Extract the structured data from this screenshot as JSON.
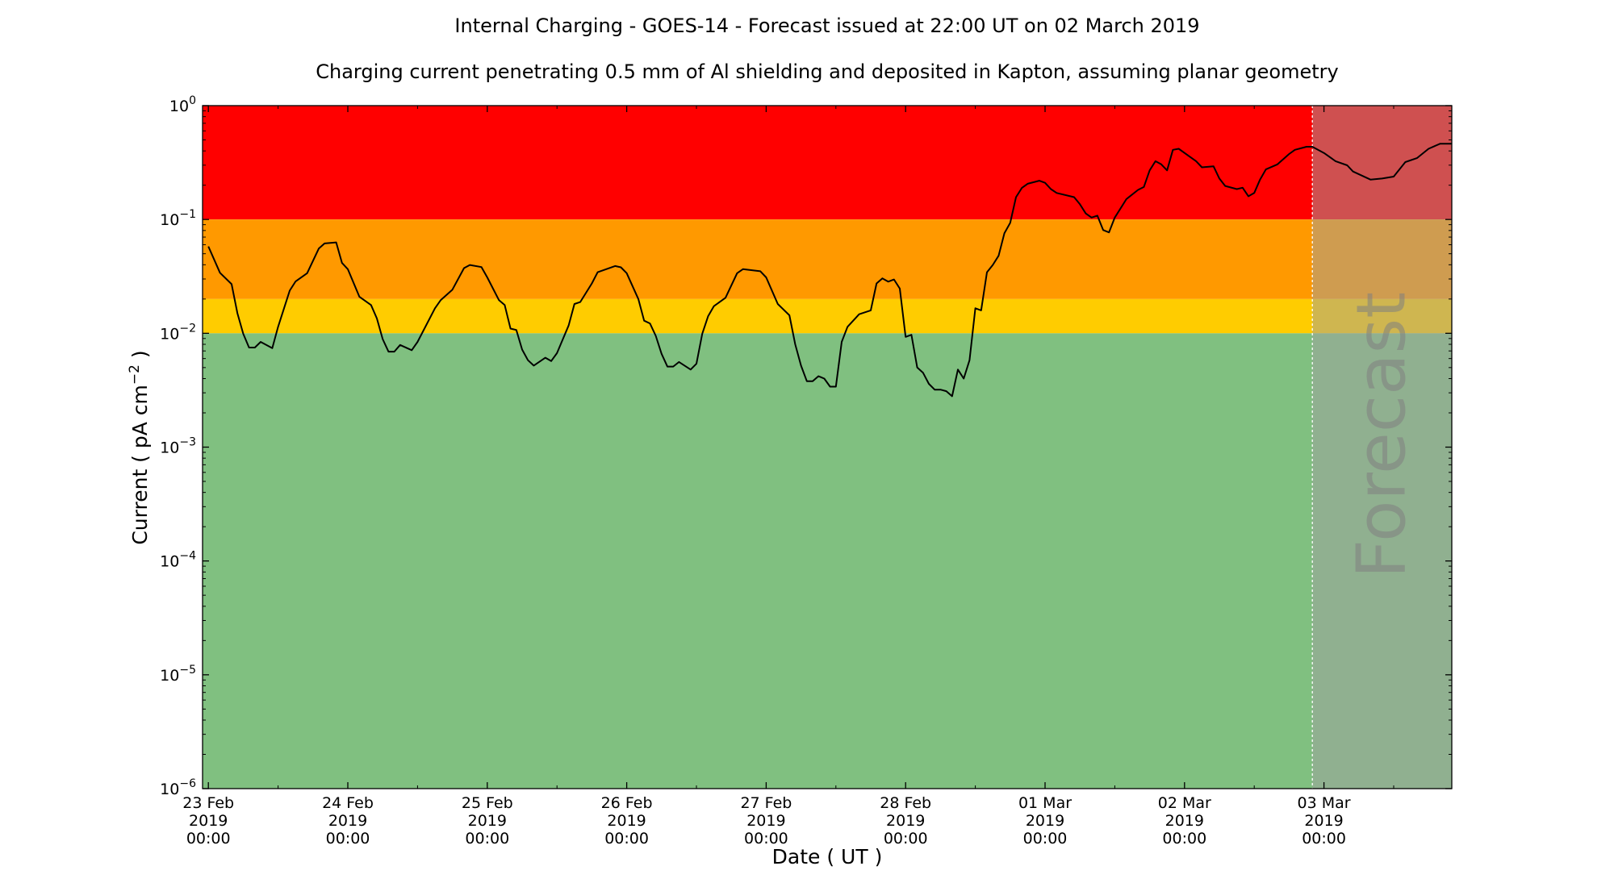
{
  "chart_data": {
    "type": "line",
    "title": "Internal Charging - GOES-14 - Forecast issued at 22:00 UT on 02 March 2019",
    "subtitle": "Charging current penetrating 0.5 mm of Al shielding and deposited in Kapton, assuming planar geometry",
    "xlabel": "Date ( UT )",
    "ylabel": {
      "prefix": "Current ( pA cm",
      "exp": "−2",
      "suffix": " )"
    },
    "yscale": "log",
    "ylim": [
      1e-06,
      1
    ],
    "xlim": [
      "2019-02-22T23:00",
      "2019-03-03T22:00"
    ],
    "grid": false,
    "y_ticks": [
      {
        "value": 1,
        "base": "10",
        "exp": "0"
      },
      {
        "value": 0.1,
        "base": "10",
        "exp": "−1"
      },
      {
        "value": 0.01,
        "base": "10",
        "exp": "−2"
      },
      {
        "value": 0.001,
        "base": "10",
        "exp": "−3"
      },
      {
        "value": 0.0001,
        "base": "10",
        "exp": "−4"
      },
      {
        "value": 1e-05,
        "base": "10",
        "exp": "−5"
      },
      {
        "value": 1e-06,
        "base": "10",
        "exp": "−6"
      }
    ],
    "x_ticks": [
      {
        "value": "2019-02-23T00:00",
        "lines": [
          "23 Feb",
          "2019",
          "00:00"
        ]
      },
      {
        "value": "2019-02-24T00:00",
        "lines": [
          "24 Feb",
          "2019",
          "00:00"
        ]
      },
      {
        "value": "2019-02-25T00:00",
        "lines": [
          "25 Feb",
          "2019",
          "00:00"
        ]
      },
      {
        "value": "2019-02-26T00:00",
        "lines": [
          "26 Feb",
          "2019",
          "00:00"
        ]
      },
      {
        "value": "2019-02-27T00:00",
        "lines": [
          "27 Feb",
          "2019",
          "00:00"
        ]
      },
      {
        "value": "2019-02-28T00:00",
        "lines": [
          "28 Feb",
          "2019",
          "00:00"
        ]
      },
      {
        "value": "2019-03-01T00:00",
        "lines": [
          "01 Mar",
          "2019",
          "00:00"
        ]
      },
      {
        "value": "2019-03-02T00:00",
        "lines": [
          "02 Mar",
          "2019",
          "00:00"
        ]
      },
      {
        "value": "2019-03-03T00:00",
        "lines": [
          "03 Mar",
          "2019",
          "00:00"
        ]
      }
    ],
    "bands": [
      {
        "from": 0.1,
        "to": 1,
        "color": "#ff0000"
      },
      {
        "from": 0.02,
        "to": 0.1,
        "color": "#ff9900"
      },
      {
        "from": 0.01,
        "to": 0.02,
        "color": "#ffcc00"
      },
      {
        "from": 1e-06,
        "to": 0.01,
        "color": "#80c080"
      }
    ],
    "forecast": {
      "start": "2019-03-02T22:00",
      "label": "Forecast",
      "overlay_color": "#a0a0a0"
    },
    "line_color": "#000000",
    "series": [
      {
        "points": [
          [
            "2019-02-23T00:00",
            0.058
          ],
          [
            "2019-02-23T02:00",
            0.034
          ],
          [
            "2019-02-23T04:00",
            0.027
          ],
          [
            "2019-02-23T05:00",
            0.015
          ],
          [
            "2019-02-23T06:00",
            0.0099
          ],
          [
            "2019-02-23T07:00",
            0.0075
          ],
          [
            "2019-02-23T08:00",
            0.0075
          ],
          [
            "2019-02-23T09:00",
            0.0084
          ],
          [
            "2019-02-23T11:00",
            0.0074
          ],
          [
            "2019-02-23T12:00",
            0.0114
          ],
          [
            "2019-02-23T14:00",
            0.0237
          ],
          [
            "2019-02-23T15:00",
            0.0285
          ],
          [
            "2019-02-23T17:00",
            0.0337
          ],
          [
            "2019-02-23T19:00",
            0.0555
          ],
          [
            "2019-02-23T20:00",
            0.0616
          ],
          [
            "2019-02-23T22:00",
            0.0629
          ],
          [
            "2019-02-23T23:00",
            0.0415
          ],
          [
            "2019-02-24T00:00",
            0.0366
          ],
          [
            "2019-02-24T02:00",
            0.0209
          ],
          [
            "2019-02-24T04:00",
            0.0177
          ],
          [
            "2019-02-24T05:00",
            0.0135
          ],
          [
            "2019-02-24T06:00",
            0.0089
          ],
          [
            "2019-02-24T07:00",
            0.0069
          ],
          [
            "2019-02-24T08:00",
            0.0069
          ],
          [
            "2019-02-24T09:00",
            0.0079
          ],
          [
            "2019-02-24T11:00",
            0.0071
          ],
          [
            "2019-02-24T12:00",
            0.0084
          ],
          [
            "2019-02-24T15:00",
            0.0166
          ],
          [
            "2019-02-24T16:00",
            0.0196
          ],
          [
            "2019-02-24T18:00",
            0.0242
          ],
          [
            "2019-02-24T20:00",
            0.0374
          ],
          [
            "2019-02-24T21:00",
            0.0398
          ],
          [
            "2019-02-24T23:00",
            0.0382
          ],
          [
            "2019-02-25T00:00",
            0.031
          ],
          [
            "2019-02-25T02:00",
            0.0196
          ],
          [
            "2019-02-25T03:00",
            0.0177
          ],
          [
            "2019-02-25T04:00",
            0.011
          ],
          [
            "2019-02-25T05:00",
            0.0107
          ],
          [
            "2019-02-25T06:00",
            0.0072
          ],
          [
            "2019-02-25T07:00",
            0.0058
          ],
          [
            "2019-02-25T08:00",
            0.0052
          ],
          [
            "2019-02-25T10:00",
            0.0061
          ],
          [
            "2019-02-25T11:00",
            0.0057
          ],
          [
            "2019-02-25T12:00",
            0.0067
          ],
          [
            "2019-02-25T14:00",
            0.0117
          ],
          [
            "2019-02-25T15:00",
            0.0181
          ],
          [
            "2019-02-25T16:00",
            0.0188
          ],
          [
            "2019-02-25T18:00",
            0.0274
          ],
          [
            "2019-02-25T19:00",
            0.0344
          ],
          [
            "2019-02-25T22:00",
            0.039
          ],
          [
            "2019-02-25T23:00",
            0.038
          ],
          [
            "2019-02-26T00:00",
            0.0337
          ],
          [
            "2019-02-26T02:00",
            0.02
          ],
          [
            "2019-02-26T03:00",
            0.0129
          ],
          [
            "2019-02-26T04:00",
            0.0122
          ],
          [
            "2019-02-26T05:00",
            0.0095
          ],
          [
            "2019-02-26T06:00",
            0.0066
          ],
          [
            "2019-02-26T07:00",
            0.0051
          ],
          [
            "2019-02-26T08:00",
            0.0051
          ],
          [
            "2019-02-26T09:00",
            0.0056
          ],
          [
            "2019-02-26T11:00",
            0.0048
          ],
          [
            "2019-02-26T12:00",
            0.0054
          ],
          [
            "2019-02-26T13:00",
            0.0099
          ],
          [
            "2019-02-26T14:00",
            0.0141
          ],
          [
            "2019-02-26T15:00",
            0.0173
          ],
          [
            "2019-02-26T17:00",
            0.0205
          ],
          [
            "2019-02-26T19:00",
            0.0337
          ],
          [
            "2019-02-26T20:00",
            0.0366
          ],
          [
            "2019-02-26T23:00",
            0.0351
          ],
          [
            "2019-02-27T00:00",
            0.031
          ],
          [
            "2019-02-27T02:00",
            0.0181
          ],
          [
            "2019-02-27T04:00",
            0.0144
          ],
          [
            "2019-02-27T05:00",
            0.008
          ],
          [
            "2019-02-27T06:00",
            0.0052
          ],
          [
            "2019-02-27T07:00",
            0.0038
          ],
          [
            "2019-02-27T08:00",
            0.0038
          ],
          [
            "2019-02-27T09:00",
            0.0042
          ],
          [
            "2019-02-27T10:00",
            0.004
          ],
          [
            "2019-02-27T11:00",
            0.0034
          ],
          [
            "2019-02-27T12:00",
            0.0034
          ],
          [
            "2019-02-27T13:00",
            0.0084
          ],
          [
            "2019-02-27T14:00",
            0.0114
          ],
          [
            "2019-02-27T16:00",
            0.0147
          ],
          [
            "2019-02-27T18:00",
            0.0159
          ],
          [
            "2019-02-27T19:00",
            0.0274
          ],
          [
            "2019-02-27T20:00",
            0.0304
          ],
          [
            "2019-02-27T21:00",
            0.0284
          ],
          [
            "2019-02-27T22:00",
            0.0297
          ],
          [
            "2019-02-27T23:00",
            0.0247
          ],
          [
            "2019-02-28T00:00",
            0.0093
          ],
          [
            "2019-02-28T01:00",
            0.0097
          ],
          [
            "2019-02-28T02:00",
            0.005
          ],
          [
            "2019-02-28T03:00",
            0.0045
          ],
          [
            "2019-02-28T04:00",
            0.0036
          ],
          [
            "2019-02-28T05:00",
            0.0032
          ],
          [
            "2019-02-28T06:00",
            0.0032
          ],
          [
            "2019-02-28T07:00",
            0.0031
          ],
          [
            "2019-02-28T08:00",
            0.0028
          ],
          [
            "2019-02-28T09:00",
            0.0048
          ],
          [
            "2019-02-28T10:00",
            0.004
          ],
          [
            "2019-02-28T11:00",
            0.0058
          ],
          [
            "2019-02-28T12:00",
            0.0166
          ],
          [
            "2019-02-28T13:00",
            0.0159
          ],
          [
            "2019-02-28T14:00",
            0.0344
          ],
          [
            "2019-02-28T15:00",
            0.0398
          ],
          [
            "2019-02-28T16:00",
            0.048
          ],
          [
            "2019-02-28T17:00",
            0.0758
          ],
          [
            "2019-02-28T18:00",
            0.0933
          ],
          [
            "2019-02-28T19:00",
            0.157
          ],
          [
            "2019-02-28T20:00",
            0.189
          ],
          [
            "2019-02-28T21:00",
            0.206
          ],
          [
            "2019-02-28T23:00",
            0.219
          ],
          [
            "2019-03-01T00:00",
            0.21
          ],
          [
            "2019-03-01T01:00",
            0.185
          ],
          [
            "2019-03-01T02:00",
            0.171
          ],
          [
            "2019-03-01T05:00",
            0.157
          ],
          [
            "2019-03-01T06:00",
            0.136
          ],
          [
            "2019-03-01T07:00",
            0.113
          ],
          [
            "2019-03-01T08:00",
            0.104
          ],
          [
            "2019-03-01T09:00",
            0.108
          ],
          [
            "2019-03-01T10:00",
            0.0807
          ],
          [
            "2019-03-01T11:00",
            0.077
          ],
          [
            "2019-03-01T12:00",
            0.104
          ],
          [
            "2019-03-01T14:00",
            0.151
          ],
          [
            "2019-03-01T16:00",
            0.182
          ],
          [
            "2019-03-01T17:00",
            0.193
          ],
          [
            "2019-03-01T18:00",
            0.27
          ],
          [
            "2019-03-01T19:00",
            0.325
          ],
          [
            "2019-03-01T20:00",
            0.305
          ],
          [
            "2019-03-01T21:00",
            0.27
          ],
          [
            "2019-03-01T22:00",
            0.409
          ],
          [
            "2019-03-01T23:00",
            0.418
          ],
          [
            "2019-03-02T01:00",
            0.353
          ],
          [
            "2019-03-02T02:00",
            0.325
          ],
          [
            "2019-03-02T03:00",
            0.287
          ],
          [
            "2019-03-02T05:00",
            0.293
          ],
          [
            "2019-03-02T06:00",
            0.229
          ],
          [
            "2019-03-02T07:00",
            0.197
          ],
          [
            "2019-03-02T09:00",
            0.185
          ],
          [
            "2019-03-02T10:00",
            0.19
          ],
          [
            "2019-03-02T11:00",
            0.16
          ],
          [
            "2019-03-02T12:00",
            0.171
          ],
          [
            "2019-03-02T13:00",
            0.224
          ],
          [
            "2019-03-02T14:00",
            0.275
          ],
          [
            "2019-03-02T16:00",
            0.305
          ],
          [
            "2019-03-02T18:00",
            0.376
          ],
          [
            "2019-03-02T19:00",
            0.409
          ],
          [
            "2019-03-02T21:00",
            0.435
          ],
          [
            "2019-03-02T22:00",
            0.435
          ],
          [
            "2019-03-03T00:00",
            0.384
          ],
          [
            "2019-03-03T02:00",
            0.325
          ],
          [
            "2019-03-03T04:00",
            0.299
          ],
          [
            "2019-03-03T05:00",
            0.264
          ],
          [
            "2019-03-03T08:00",
            0.224
          ],
          [
            "2019-03-03T10:00",
            0.229
          ],
          [
            "2019-03-03T12:00",
            0.238
          ],
          [
            "2019-03-03T14:00",
            0.319
          ],
          [
            "2019-03-03T16:00",
            0.346
          ],
          [
            "2019-03-03T18:00",
            0.418
          ],
          [
            "2019-03-03T20:00",
            0.463
          ],
          [
            "2019-03-03T22:00",
            0.463
          ]
        ]
      }
    ]
  }
}
